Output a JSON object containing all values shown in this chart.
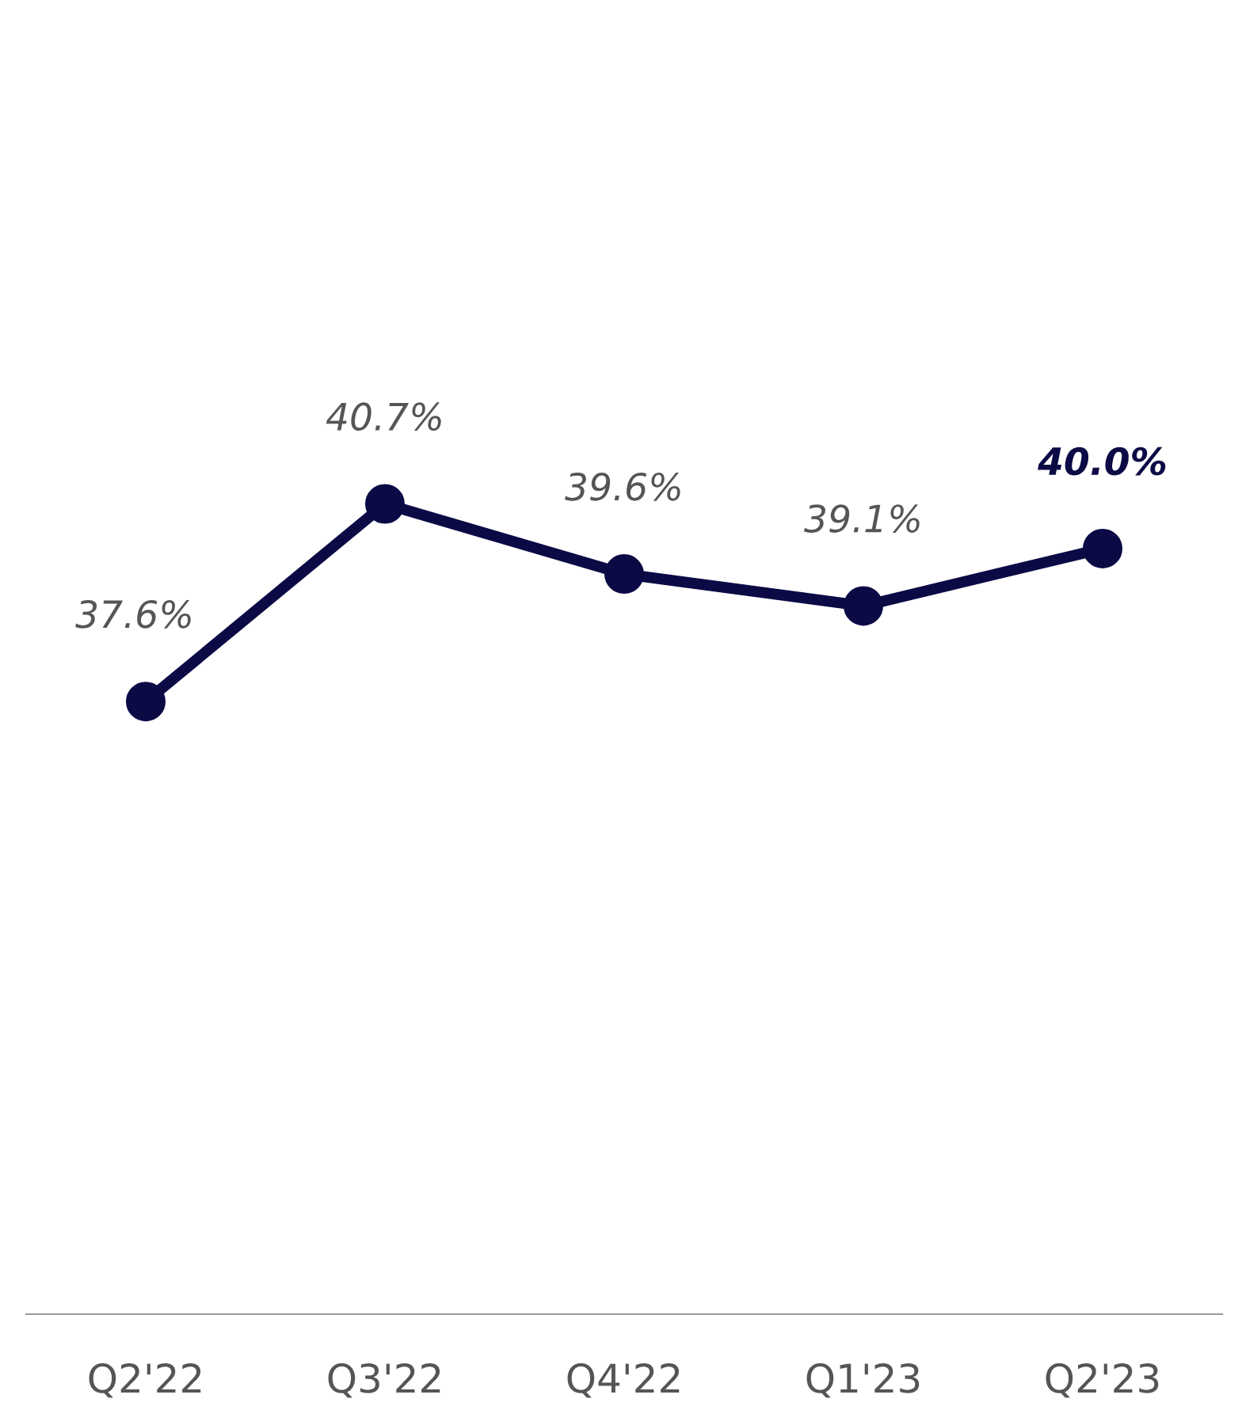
{
  "chart_data": {
    "type": "line",
    "categories": [
      "Q2'22",
      "Q3'22",
      "Q4'22",
      "Q1'23",
      "Q2'23"
    ],
    "series": [
      {
        "color": "#0b0a45",
        "values": [
          37.6,
          40.7,
          39.6,
          39.1,
          40.0
        ],
        "value_labels": [
          "37.6%",
          "40.7%",
          "39.6%",
          "39.1%",
          "40.0%"
        ]
      }
    ],
    "marker": "circle",
    "line_style": "solid",
    "grid": false,
    "legend": false
  }
}
